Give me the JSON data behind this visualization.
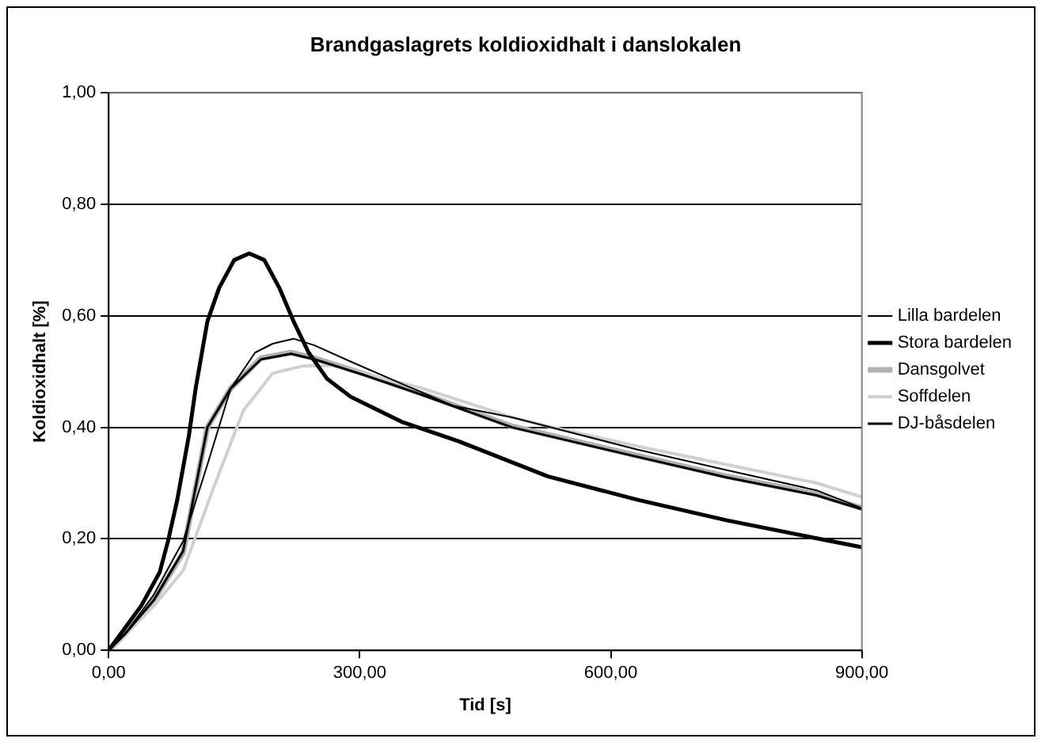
{
  "chart_data": {
    "type": "line",
    "title": "Brandgaslagrets koldioxidhalt i danslokalen",
    "xlabel": "Tid [s]",
    "ylabel": "Koldioxidhalt [%]",
    "xlim": [
      0,
      900
    ],
    "xticks": [
      {
        "value": 0,
        "label": "0,00"
      },
      {
        "value": 300,
        "label": "300,00"
      },
      {
        "value": 600,
        "label": "600,00"
      },
      {
        "value": 900,
        "label": "900,00"
      }
    ],
    "ylim": [
      0,
      1
    ],
    "yticks": [
      {
        "value": 0,
        "label": "0,00"
      },
      {
        "value": 0.2,
        "label": "0,20"
      },
      {
        "value": 0.4,
        "label": "0,40"
      },
      {
        "value": 0.6,
        "label": "0,60"
      },
      {
        "value": 0.8,
        "label": "0,80"
      },
      {
        "value": 1,
        "label": "1,00"
      }
    ],
    "grid": "y",
    "legend": "right",
    "marker": "none",
    "line_style": "solid",
    "series": [
      {
        "name": "Lilla bardelen",
        "color": "#000000",
        "x": [
          0,
          20,
          54,
          89,
          118,
          146,
          175,
          196,
          221,
          246,
          289,
          346,
          411,
          482,
          632,
          739,
          846,
          900
        ],
        "values": [
          0,
          0.03,
          0.1,
          0.196,
          0.333,
          0.47,
          0.534,
          0.55,
          0.559,
          0.547,
          0.518,
          0.481,
          0.439,
          0.418,
          0.36,
          0.323,
          0.287,
          0.255
        ]
      },
      {
        "name": "Stora bardelen",
        "color": "#000000",
        "x": [
          0,
          18,
          39,
          61,
          71,
          82,
          96,
          104,
          118,
          132,
          150,
          168,
          186,
          204,
          221,
          239,
          261,
          289,
          350,
          418,
          525,
          632,
          739,
          846,
          900
        ],
        "values": [
          0,
          0.037,
          0.08,
          0.14,
          0.196,
          0.27,
          0.386,
          0.47,
          0.59,
          0.65,
          0.7,
          0.712,
          0.7,
          0.65,
          0.59,
          0.534,
          0.487,
          0.455,
          0.41,
          0.375,
          0.312,
          0.27,
          0.233,
          0.201,
          0.185
        ]
      },
      {
        "name": "Dansgolvet",
        "color": "#b0b0b0",
        "x": [
          0,
          20,
          54,
          89,
          118,
          146,
          182,
          218,
          246,
          303,
          375,
          482,
          632,
          739,
          846,
          900
        ],
        "values": [
          0,
          0.03,
          0.09,
          0.175,
          0.4,
          0.47,
          0.524,
          0.534,
          0.524,
          0.497,
          0.46,
          0.402,
          0.349,
          0.312,
          0.28,
          0.255
        ]
      },
      {
        "name": "Soffdelen",
        "color": "#d0d0d0",
        "x": [
          0,
          20,
          54,
          89,
          125,
          161,
          196,
          232,
          268,
          303,
          375,
          482,
          525,
          632,
          739,
          846,
          900
        ],
        "values": [
          0,
          0.028,
          0.08,
          0.143,
          0.29,
          0.43,
          0.497,
          0.51,
          0.511,
          0.497,
          0.47,
          0.418,
          0.402,
          0.366,
          0.333,
          0.3,
          0.275
        ]
      },
      {
        "name": "DJ-båsdelen",
        "color": "#000000",
        "x": [
          0,
          20,
          54,
          89,
          118,
          146,
          182,
          218,
          246,
          303,
          375,
          482,
          632,
          739,
          846,
          900
        ],
        "values": [
          0,
          0.03,
          0.09,
          0.178,
          0.4,
          0.47,
          0.522,
          0.532,
          0.522,
          0.495,
          0.458,
          0.4,
          0.347,
          0.31,
          0.278,
          0.253
        ]
      }
    ]
  }
}
